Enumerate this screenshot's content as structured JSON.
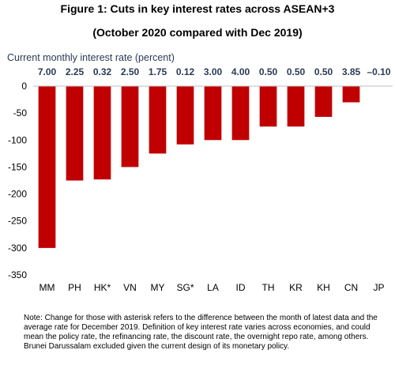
{
  "header": {
    "title": "Figure 1: Cuts in key interest rates across ASEAN+3",
    "subtitle": "(October 2020 compared with Dec 2019)",
    "rate_label": "Current monthly interest rate (percent)"
  },
  "chart_data": {
    "type": "bar",
    "categories": [
      "MM",
      "PH",
      "HK*",
      "VN",
      "MY",
      "SG*",
      "LA",
      "ID",
      "TH",
      "KR",
      "KH",
      "CN",
      "JP"
    ],
    "values": [
      -300,
      -175,
      -173,
      -150,
      -125,
      -108,
      -100,
      -100,
      -75,
      -75,
      -57,
      -30,
      0
    ],
    "current_rates": [
      "7.00",
      "2.25",
      "0.32",
      "2.50",
      "1.75",
      "0.12",
      "3.00",
      "4.00",
      "0.50",
      "0.50",
      "0.50",
      "3.85",
      "–0.10"
    ],
    "ylim": [
      -350,
      0
    ],
    "yticks": [
      0,
      -50,
      -100,
      -150,
      -200,
      -250,
      -300,
      -350
    ],
    "bar_color": "#c00000",
    "grid": false
  },
  "note": "Note: Change for those with asterisk refers to the difference between the month of latest data and the average rate for December 2019. Definition of key interest rate varies across economies, and could mean the policy rate, the refinancing rate, the discount rate, the overnight repo rate, among others. Brunei Darussalam excluded given the current design of its monetary policy."
}
